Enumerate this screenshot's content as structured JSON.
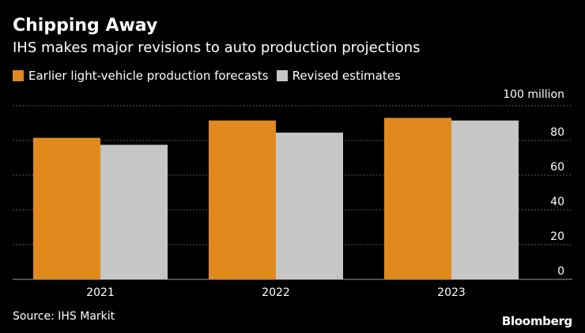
{
  "header": {
    "title": "Chipping Away",
    "subtitle": "IHS makes major revisions to auto production projections"
  },
  "footer": {
    "source": "Source: IHS Markit",
    "brand": "Bloomberg"
  },
  "colors": {
    "background": "#000000",
    "gridline": "#555555",
    "text": "#ffffff"
  },
  "chart_data": {
    "type": "bar",
    "title": "Chipping Away",
    "subtitle": "IHS makes major revisions to auto production projections",
    "categories": [
      "2021",
      "2022",
      "2023"
    ],
    "series": [
      {
        "name": "Earlier light-vehicle production forecasts",
        "color": "#E08A1E",
        "values": [
          81.5,
          91.5,
          93
        ]
      },
      {
        "name": "Revised estimates",
        "color": "#C6C6C6",
        "values": [
          77.5,
          84.5,
          91.5
        ]
      }
    ],
    "yunit": "100 million",
    "ylim": [
      0,
      100
    ],
    "yticks": [
      0,
      20,
      40,
      60,
      80
    ],
    "xlabel": "",
    "ylabel": "",
    "grid": true,
    "legend": "top-left"
  }
}
